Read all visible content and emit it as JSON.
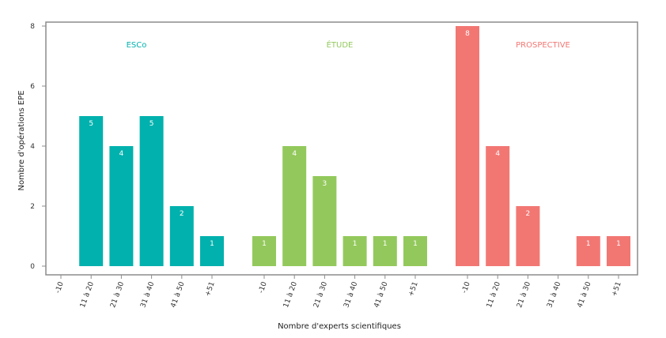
{
  "chart_data": {
    "type": "bar",
    "xlabel": "Nombre d'experts scientifiques",
    "ylabel": "Nombre d'opérations EPE",
    "ylim": [
      0,
      8
    ],
    "yticks": [
      0,
      2,
      4,
      6,
      8
    ],
    "grid": false,
    "categories": [
      "-10",
      "11 à 20",
      "21 à 30",
      "31 à 40",
      "41 à 50",
      "+51"
    ],
    "groups": [
      {
        "name": "ESCo",
        "color": "#00b1ad",
        "values": [
          0,
          5,
          4,
          5,
          2,
          1
        ]
      },
      {
        "name": "ÉTUDE",
        "color": "#93c95c",
        "values": [
          1,
          4,
          3,
          1,
          1,
          1
        ]
      },
      {
        "name": "PROSPECTIVE",
        "color": "#f27773",
        "values": [
          8,
          4,
          2,
          0,
          1,
          1
        ]
      }
    ]
  }
}
